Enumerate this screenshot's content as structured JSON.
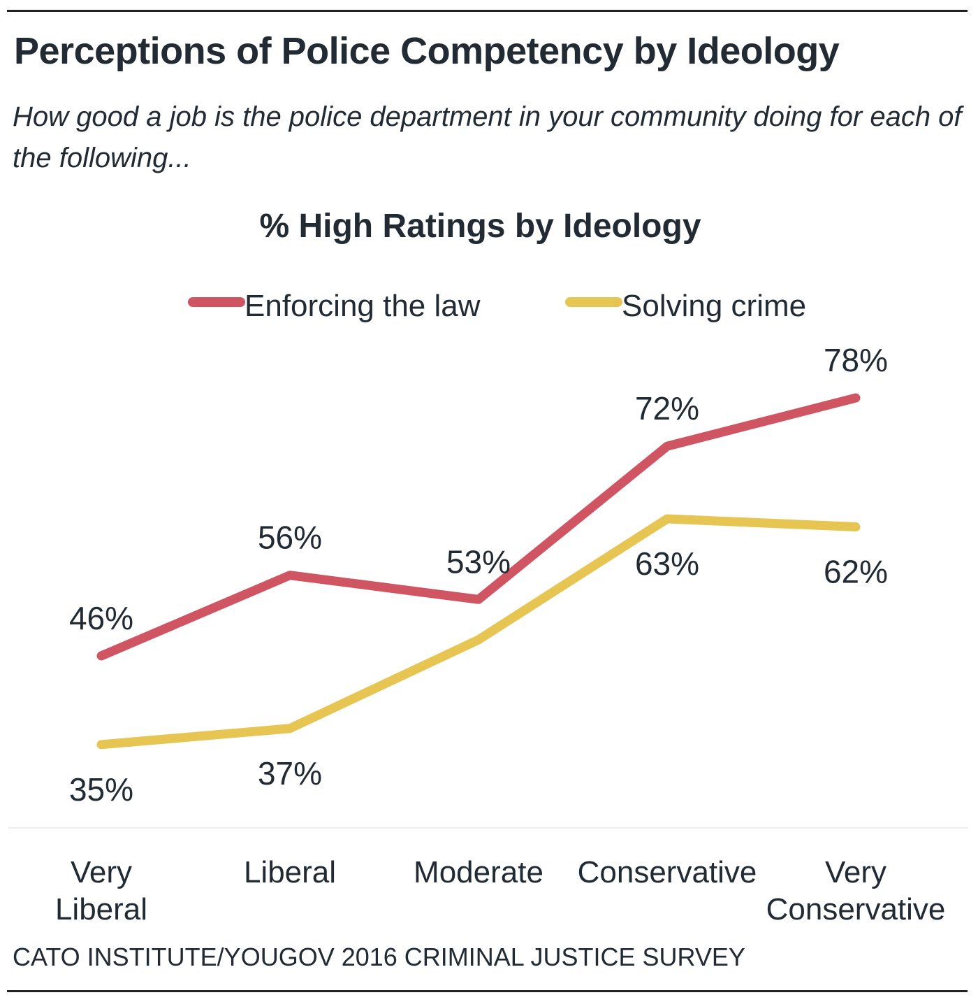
{
  "title": "Perceptions of Police Competency by Ideology",
  "subtitle": "How good a job is the police department in your community doing for each of the following...",
  "source": "CATO INSTITUTE/YOUGOV 2016 CRIMINAL JUSTICE SURVEY",
  "chart_data": {
    "type": "line",
    "title": "% High Ratings by Ideology",
    "categories": [
      [
        "Very",
        "Liberal"
      ],
      [
        "Liberal"
      ],
      [
        "Moderate"
      ],
      [
        "Conservative"
      ],
      [
        "Very",
        "Conservative"
      ]
    ],
    "series": [
      {
        "name": "Enforcing the law",
        "color": "#d05563",
        "values": [
          46,
          56,
          53,
          72,
          78
        ],
        "labels": [
          "46%",
          "56%",
          "53%",
          "72%",
          "78%"
        ]
      },
      {
        "name": "Solving crime",
        "color": "#e6c552",
        "values": [
          35,
          37,
          48,
          63,
          62
        ],
        "labels": [
          "35%",
          "37%",
          "",
          "63%",
          "62%"
        ]
      }
    ],
    "legend": "top-center",
    "grid": false
  }
}
